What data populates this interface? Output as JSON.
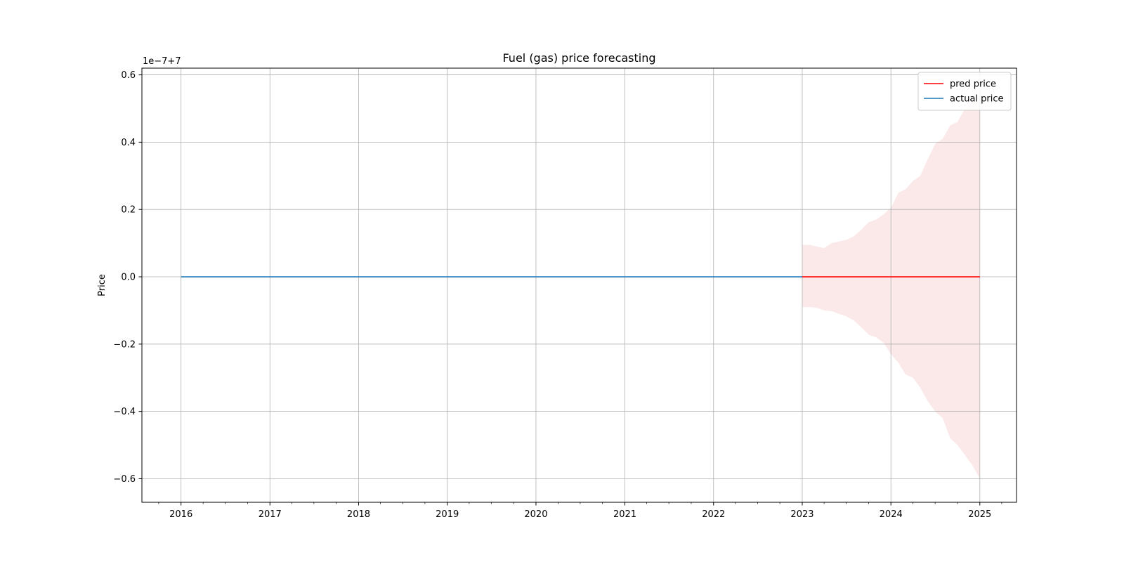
{
  "chart_data": {
    "type": "line",
    "title": "Fuel (gas) price forecasting",
    "xlabel": "",
    "ylabel": "Price",
    "offset_label": "1e−7+7",
    "x_range": [
      "2015-07-24",
      "2025-06-01"
    ],
    "ylim": [
      -0.67,
      0.62
    ],
    "x_ticks": [
      {
        "date": "2016-01-01",
        "label": "2016"
      },
      {
        "date": "2017-01-01",
        "label": "2017"
      },
      {
        "date": "2018-01-01",
        "label": "2018"
      },
      {
        "date": "2019-01-01",
        "label": "2019"
      },
      {
        "date": "2020-01-01",
        "label": "2020"
      },
      {
        "date": "2021-01-01",
        "label": "2021"
      },
      {
        "date": "2022-01-01",
        "label": "2022"
      },
      {
        "date": "2023-01-01",
        "label": "2023"
      },
      {
        "date": "2024-01-01",
        "label": "2024"
      },
      {
        "date": "2025-01-01",
        "label": "2025"
      }
    ],
    "y_ticks": [
      {
        "value": -0.6,
        "label": "−0.6"
      },
      {
        "value": -0.4,
        "label": "−0.4"
      },
      {
        "value": -0.2,
        "label": "−0.2"
      },
      {
        "value": 0.0,
        "label": "0.0"
      },
      {
        "value": 0.2,
        "label": "0.2"
      },
      {
        "value": 0.4,
        "label": "0.4"
      },
      {
        "value": 0.6,
        "label": "0.6"
      }
    ],
    "grid": true,
    "legend": {
      "position": "top-right",
      "entries": [
        {
          "name": "pred price",
          "color": "#ff0000"
        },
        {
          "name": "actual price",
          "color": "#1f77b4"
        }
      ]
    },
    "series": [
      {
        "name": "actual price",
        "color": "#1f77b4",
        "points": [
          [
            "2016-01-01",
            0.0
          ],
          [
            "2023-01-01",
            0.0
          ]
        ]
      },
      {
        "name": "pred price",
        "color": "#ff0000",
        "points": [
          [
            "2023-01-01",
            0.0
          ],
          [
            "2025-01-01",
            0.0
          ]
        ]
      }
    ],
    "confidence_band": {
      "color": "#f8d7d7",
      "points": [
        [
          "2023-01-01",
          -0.09,
          0.095
        ],
        [
          "2023-02-01",
          -0.09,
          0.095
        ],
        [
          "2023-03-01",
          -0.092,
          0.09
        ],
        [
          "2023-04-01",
          -0.1,
          0.085
        ],
        [
          "2023-05-01",
          -0.102,
          0.1
        ],
        [
          "2023-06-01",
          -0.11,
          0.105
        ],
        [
          "2023-07-01",
          -0.117,
          0.11
        ],
        [
          "2023-08-01",
          -0.13,
          0.12
        ],
        [
          "2023-09-01",
          -0.15,
          0.14
        ],
        [
          "2023-10-01",
          -0.172,
          0.162
        ],
        [
          "2023-11-01",
          -0.18,
          0.17
        ],
        [
          "2023-12-01",
          -0.195,
          0.185
        ],
        [
          "2024-01-01",
          -0.23,
          0.205
        ],
        [
          "2024-02-01",
          -0.255,
          0.25
        ],
        [
          "2024-03-01",
          -0.29,
          0.26
        ],
        [
          "2024-04-01",
          -0.3,
          0.285
        ],
        [
          "2024-05-01",
          -0.33,
          0.3
        ],
        [
          "2024-06-01",
          -0.37,
          0.35
        ],
        [
          "2024-07-01",
          -0.4,
          0.395
        ],
        [
          "2024-08-01",
          -0.42,
          0.41
        ],
        [
          "2024-09-01",
          -0.48,
          0.45
        ],
        [
          "2024-10-01",
          -0.5,
          0.46
        ],
        [
          "2024-11-01",
          -0.53,
          0.5
        ],
        [
          "2024-12-01",
          -0.56,
          0.52
        ],
        [
          "2025-01-01",
          -0.6,
          0.52
        ]
      ]
    }
  }
}
